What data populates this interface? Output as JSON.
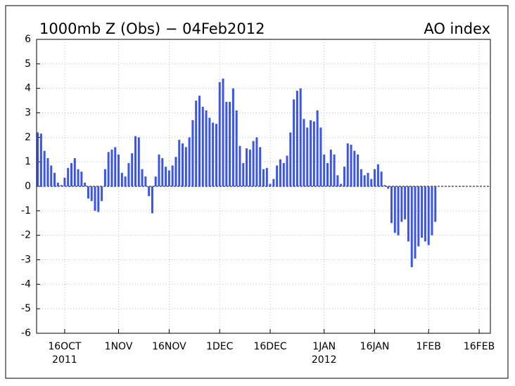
{
  "chart_data": {
    "type": "bar",
    "title": "1000mb Z (Obs) − 04Feb2012",
    "subtitle": "AO index",
    "x": [
      "2011-10-08",
      "2011-10-09",
      "2011-10-10",
      "2011-10-11",
      "2011-10-12",
      "2011-10-13",
      "2011-10-14",
      "2011-10-15",
      "2011-10-16",
      "2011-10-17",
      "2011-10-18",
      "2011-10-19",
      "2011-10-20",
      "2011-10-21",
      "2011-10-22",
      "2011-10-23",
      "2011-10-24",
      "2011-10-25",
      "2011-10-26",
      "2011-10-27",
      "2011-10-28",
      "2011-10-29",
      "2011-10-30",
      "2011-10-31",
      "2011-11-01",
      "2011-11-02",
      "2011-11-03",
      "2011-11-04",
      "2011-11-05",
      "2011-11-06",
      "2011-11-07",
      "2011-11-08",
      "2011-11-09",
      "2011-11-10",
      "2011-11-11",
      "2011-11-12",
      "2011-11-13",
      "2011-11-14",
      "2011-11-15",
      "2011-11-16",
      "2011-11-17",
      "2011-11-18",
      "2011-11-19",
      "2011-11-20",
      "2011-11-21",
      "2011-11-22",
      "2011-11-23",
      "2011-11-24",
      "2011-11-25",
      "2011-11-26",
      "2011-11-27",
      "2011-11-28",
      "2011-11-29",
      "2011-11-30",
      "2011-12-01",
      "2011-12-02",
      "2011-12-03",
      "2011-12-04",
      "2011-12-05",
      "2011-12-06",
      "2011-12-07",
      "2011-12-08",
      "2011-12-09",
      "2011-12-10",
      "2011-12-11",
      "2011-12-12",
      "2011-12-13",
      "2011-12-14",
      "2011-12-15",
      "2011-12-16",
      "2011-12-17",
      "2011-12-18",
      "2011-12-19",
      "2011-12-20",
      "2011-12-21",
      "2011-12-22",
      "2011-12-23",
      "2011-12-24",
      "2011-12-25",
      "2011-12-26",
      "2011-12-27",
      "2011-12-28",
      "2011-12-29",
      "2011-12-30",
      "2011-12-31",
      "2012-01-01",
      "2012-01-02",
      "2012-01-03",
      "2012-01-04",
      "2012-01-05",
      "2012-01-06",
      "2012-01-07",
      "2012-01-08",
      "2012-01-09",
      "2012-01-10",
      "2012-01-11",
      "2012-01-12",
      "2012-01-13",
      "2012-01-14",
      "2012-01-15",
      "2012-01-16",
      "2012-01-17",
      "2012-01-18",
      "2012-01-19",
      "2012-01-20",
      "2012-01-21",
      "2012-01-22",
      "2012-01-23",
      "2012-01-24",
      "2012-01-25",
      "2012-01-26",
      "2012-01-27",
      "2012-01-28",
      "2012-01-29",
      "2012-01-30",
      "2012-01-31",
      "2012-02-01",
      "2012-02-02",
      "2012-02-03"
    ],
    "values": [
      2.2,
      2.15,
      1.45,
      1.15,
      0.85,
      0.55,
      0.15,
      0.05,
      0.35,
      0.75,
      0.95,
      1.15,
      0.7,
      0.6,
      0.15,
      -0.5,
      -0.6,
      -1.0,
      -1.05,
      -0.6,
      0.7,
      1.4,
      1.5,
      1.6,
      1.3,
      0.55,
      0.4,
      0.95,
      1.35,
      2.05,
      2.0,
      0.7,
      0.4,
      -0.4,
      -1.1,
      0.4,
      1.3,
      1.15,
      0.8,
      0.65,
      0.85,
      1.2,
      1.9,
      1.75,
      1.6,
      2.0,
      2.7,
      3.5,
      3.7,
      3.25,
      3.1,
      2.8,
      2.6,
      2.55,
      4.25,
      4.4,
      3.45,
      3.45,
      4.0,
      3.1,
      1.65,
      0.95,
      1.55,
      1.5,
      1.85,
      2.0,
      1.6,
      0.7,
      0.75,
      0.1,
      0.3,
      0.85,
      1.1,
      0.95,
      1.25,
      2.2,
      3.55,
      3.9,
      4.0,
      2.75,
      2.4,
      2.7,
      2.65,
      3.1,
      2.4,
      1.3,
      0.95,
      1.5,
      1.3,
      0.45,
      0.1,
      0.8,
      1.75,
      1.7,
      1.45,
      1.3,
      0.7,
      0.45,
      0.55,
      0.3,
      0.7,
      0.9,
      0.6,
      0.05,
      -0.1,
      -1.5,
      -1.9,
      -2.0,
      -1.45,
      -1.35,
      -2.25,
      -3.3,
      -2.95,
      -2.45,
      -2.1,
      -2.25,
      -2.4,
      -2.0,
      -1.45
    ],
    "color": "#3a55e8",
    "xlim": [
      "2011-10-07T16:00",
      "2012-02-19T08:00"
    ],
    "xticks": [
      {
        "value": "2011-10-16",
        "label": "16OCT"
      },
      {
        "value": "2011-11-01",
        "label": "1NOV"
      },
      {
        "value": "2011-11-16",
        "label": "16NOV"
      },
      {
        "value": "2011-12-01",
        "label": "1DEC"
      },
      {
        "value": "2011-12-16",
        "label": "16DEC"
      },
      {
        "value": "2012-01-01",
        "label": "1JAN"
      },
      {
        "value": "2012-01-16",
        "label": "16JAN"
      },
      {
        "value": "2012-02-01",
        "label": "1FEB"
      },
      {
        "value": "2012-02-16",
        "label": "16FEB"
      }
    ],
    "x_year_labels": [
      {
        "value": "2011-10-16",
        "label": "2011"
      },
      {
        "value": "2012-01-01",
        "label": "2012"
      }
    ],
    "ylim": [
      -6,
      6
    ],
    "yticks": [
      -6,
      -5,
      -4,
      -3,
      -2,
      -1,
      0,
      1,
      2,
      3,
      4,
      5,
      6
    ],
    "grid": true
  }
}
